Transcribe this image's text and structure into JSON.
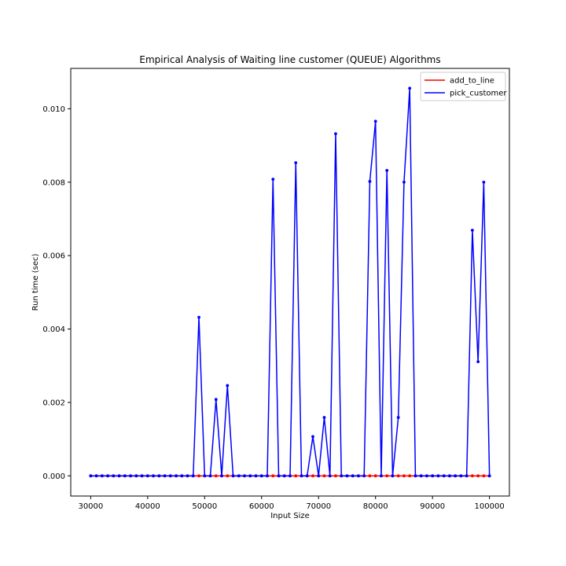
{
  "chart_data": {
    "type": "line",
    "title": "Empirical Analysis of Waiting line customer (QUEUE) Algorithms",
    "xlabel": "Input Size",
    "ylabel": "Run time (sec)",
    "xlim": [
      26500,
      103500
    ],
    "ylim": [
      -0.00055,
      0.0111
    ],
    "xticks": [
      30000,
      40000,
      50000,
      60000,
      70000,
      80000,
      90000,
      100000
    ],
    "xtick_labels": [
      "30000",
      "40000",
      "50000",
      "60000",
      "70000",
      "80000",
      "90000",
      "100000"
    ],
    "yticks": [
      0.0,
      0.002,
      0.004,
      0.006,
      0.008,
      0.01
    ],
    "ytick_labels": [
      "0.000",
      "0.002",
      "0.004",
      "0.006",
      "0.008",
      "0.010"
    ],
    "grid": false,
    "legend_position": "top-right",
    "x": [
      30000,
      31000,
      32000,
      33000,
      34000,
      35000,
      36000,
      37000,
      38000,
      39000,
      40000,
      41000,
      42000,
      43000,
      44000,
      45000,
      46000,
      47000,
      48000,
      49000,
      50000,
      51000,
      52000,
      53000,
      54000,
      55000,
      56000,
      57000,
      58000,
      59000,
      60000,
      61000,
      62000,
      63000,
      64000,
      65000,
      66000,
      67000,
      68000,
      69000,
      70000,
      71000,
      72000,
      73000,
      74000,
      75000,
      76000,
      77000,
      78000,
      79000,
      80000,
      81000,
      82000,
      83000,
      84000,
      85000,
      86000,
      87000,
      88000,
      89000,
      90000,
      91000,
      92000,
      93000,
      94000,
      95000,
      96000,
      97000,
      98000,
      99000,
      100000
    ],
    "series": [
      {
        "name": "add_to_line",
        "color": "#ff0000",
        "values": [
          0,
          0,
          0,
          0,
          0,
          0,
          0,
          0,
          0,
          0,
          0,
          0,
          0,
          0,
          0,
          0,
          0,
          0,
          0,
          0,
          0,
          0,
          0,
          0,
          0,
          0,
          0,
          0,
          0,
          0,
          0,
          0,
          0,
          0,
          0,
          0,
          0,
          0,
          0,
          0,
          0,
          0,
          0,
          0,
          0,
          0,
          0,
          0,
          0,
          0,
          0,
          0,
          0,
          0,
          0,
          0,
          0,
          0,
          0,
          0,
          0,
          0,
          0,
          0,
          0,
          0,
          0,
          0,
          0,
          0,
          0
        ]
      },
      {
        "name": "pick_customer",
        "color": "#0000ff",
        "values": [
          0,
          0,
          0,
          0,
          0,
          0,
          0,
          0,
          0,
          0,
          0,
          0,
          0,
          0,
          0,
          0,
          0,
          0,
          0,
          0.00432,
          0,
          0,
          0.00208,
          0,
          0.00246,
          0,
          0,
          0,
          0,
          0,
          0,
          0,
          0.00808,
          0,
          0,
          0,
          0.00853,
          0,
          0,
          0.00107,
          0,
          0.00159,
          0,
          0.00932,
          0,
          0,
          0,
          0,
          0,
          0.00802,
          0.00966,
          0,
          0.00832,
          0,
          0.00159,
          0.008,
          0.01056,
          0,
          0,
          0,
          0,
          0,
          0,
          0,
          0,
          0,
          0,
          0.00669,
          0.00311,
          0.008,
          0
        ]
      }
    ]
  }
}
